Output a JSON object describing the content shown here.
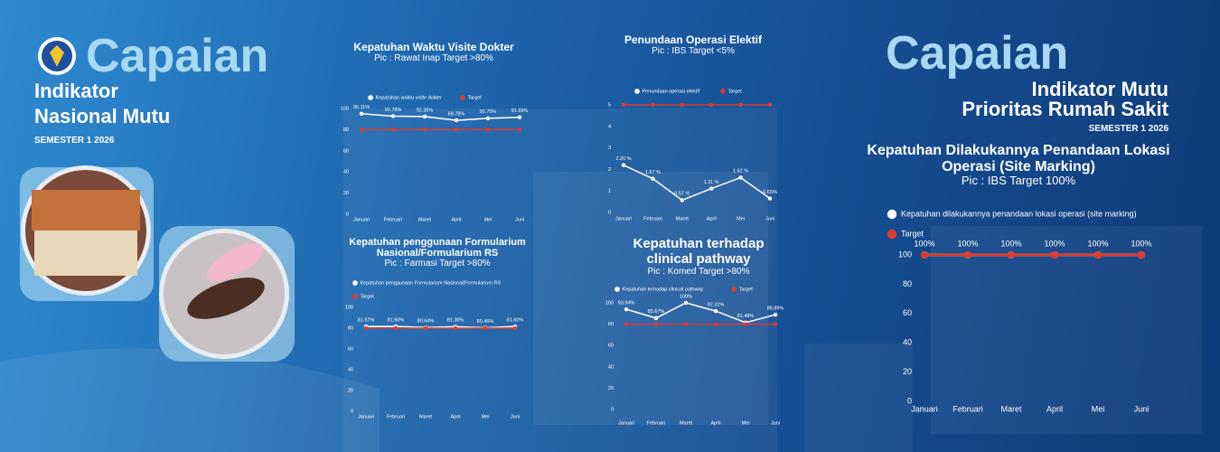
{
  "header_left": {
    "title": "Capaian",
    "lines": [
      "Indikator",
      "Nasional Mutu"
    ],
    "semester": "SEMESTER 1 2026"
  },
  "header_right": {
    "title": "Capaian",
    "lines": [
      "Indikator Mutu",
      "Prioritas Rumah Sakit"
    ],
    "semester": "SEMESTER 1 2026"
  },
  "chart_data": [
    {
      "type": "line",
      "title": "Kepatuhan Waktu Visite Dokter",
      "subtitle": "Pic : Rawat Inap Target >80%",
      "categories": [
        "Januari",
        "Februari",
        "Maret",
        "April",
        "Mei",
        "Juni"
      ],
      "series": [
        {
          "name": "Kepatuhan waktu visite dokter",
          "color": "#ffffff",
          "values": [
            95.11,
            92.76,
            92.35,
            88.78,
            90.7,
            91.69
          ],
          "value_labels": [
            "95.11%",
            "92.76%",
            "92.35%",
            "88.78%",
            "90.70%",
            "91.69%"
          ]
        },
        {
          "name": "Target",
          "color": "#e03a2c",
          "values": [
            80,
            80,
            80,
            80,
            80,
            80
          ]
        }
      ],
      "ylim": [
        0,
        100
      ],
      "yticks": [
        0,
        20,
        40,
        60,
        80,
        100
      ],
      "grid": false
    },
    {
      "type": "line",
      "title": "Penundaan Operasi Elektif",
      "subtitle": "Pic : IBS Target <5%",
      "categories": [
        "Januari",
        "Februari",
        "Maret",
        "April",
        "Mei",
        "Juni"
      ],
      "series": [
        {
          "name": "Penundaan operasi elektif",
          "color": "#ffffff",
          "values": [
            2.2,
            1.57,
            0.57,
            1.11,
            1.62,
            0.65
          ],
          "value_labels": [
            "2.20 %",
            "1.57 %",
            "0.57 %",
            "1.11 %",
            "1.62 %",
            "0.65%"
          ]
        },
        {
          "name": "Target",
          "color": "#e03a2c",
          "values": [
            5,
            5,
            5,
            5,
            5,
            5
          ]
        }
      ],
      "ylim": [
        0,
        5
      ],
      "yticks": [
        0,
        1,
        2,
        3,
        4,
        5
      ],
      "grid": false
    },
    {
      "type": "line",
      "title": "Kepatuhan penggunaan Formularium Nasional/Formularium RS",
      "subtitle": "Pic : Farmasi Target >80%",
      "categories": [
        "Januari",
        "Februari",
        "Maret",
        "April",
        "Mei",
        "Juni"
      ],
      "series": [
        {
          "name": "Kepatuhan penggunaan Formularium Nasional/Formularium RS",
          "color": "#ffffff",
          "values": [
            81.57,
            81.6,
            80.64,
            81.36,
            80.46,
            81.6
          ],
          "value_labels": [
            "81.57%",
            "81.60%",
            "80.64%",
            "81.36%",
            "80.46%",
            "81.60%"
          ]
        },
        {
          "name": "Target",
          "color": "#e03a2c",
          "values": [
            80,
            80,
            80,
            80,
            80,
            80
          ]
        }
      ],
      "ylim": [
        0,
        100
      ],
      "yticks": [
        0,
        20,
        40,
        60,
        80,
        100
      ],
      "grid": false
    },
    {
      "type": "line",
      "title": "Kepatuhan terhadap clinical pathway",
      "subtitle": "Pic : Komed Target >80%",
      "categories": [
        "Januari",
        "Februari",
        "Maret",
        "April",
        "Mei",
        "Juni"
      ],
      "series": [
        {
          "name": "Kepatuhan terhadap clinical pathway",
          "color": "#ffffff",
          "values": [
            93.94,
            85.67,
            100,
            92.31,
            81.48,
            88.89
          ],
          "value_labels": [
            "93.94%",
            "85.67%",
            "100%",
            "92.31%",
            "81.48%",
            "88.89%"
          ]
        },
        {
          "name": "Target",
          "color": "#e03a2c",
          "values": [
            80,
            80,
            80,
            80,
            80,
            80
          ]
        }
      ],
      "ylim": [
        0,
        100
      ],
      "yticks": [
        0,
        20,
        40,
        60,
        80,
        100
      ],
      "grid": false
    },
    {
      "type": "line",
      "title": "Kepatuhan Dilakukannya Penandaan Lokasi Operasi (Site Marking)",
      "subtitle": "Pic : IBS Target 100%",
      "categories": [
        "Januari",
        "Februari",
        "Maret",
        "April",
        "Mei",
        "Juni"
      ],
      "series": [
        {
          "name": "Kepatuhan dilakukannya penandaan lokasi operasi (site marking)",
          "color": "#ffffff",
          "values": [
            100,
            100,
            100,
            100,
            100,
            100
          ],
          "value_labels": [
            "100%",
            "100%",
            "100%",
            "100%",
            "100%",
            "100%"
          ]
        },
        {
          "name": "Target",
          "color": "#e03a2c",
          "values": [
            100,
            100,
            100,
            100,
            100,
            100
          ]
        }
      ],
      "ylim": [
        0,
        100
      ],
      "yticks": [
        0,
        20,
        40,
        60,
        80,
        100
      ],
      "grid": false
    }
  ]
}
